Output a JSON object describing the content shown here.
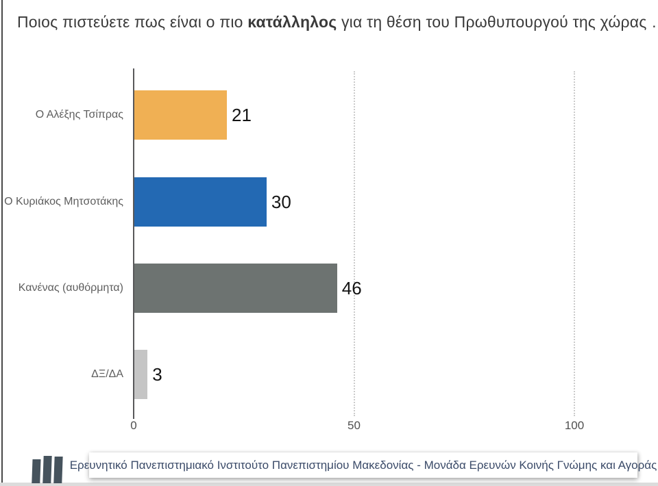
{
  "title": {
    "prefix": "Ποιος πιστεύετε πως είναι ο πιο ",
    "bold": "κατάλληλος",
    "suffix": " για τη θέση του Πρωθυπουργού της χώρας …"
  },
  "chart_data": {
    "type": "bar",
    "orientation": "horizontal",
    "categories": [
      "Ο Αλέξης Τσίπρας",
      "Ο Κυριάκος Μητσοτάκης",
      "Κανένας (αυθόρμητα)",
      "ΔΞ/ΔΑ"
    ],
    "values": [
      21,
      30,
      46,
      3
    ],
    "bar_colors": [
      "#F0B054",
      "#2369B3",
      "#6D7371",
      "#C5C5C5"
    ],
    "value_labels": [
      21,
      30,
      46,
      3
    ],
    "xlim": [
      0,
      100
    ],
    "x_ticks": [
      0,
      50,
      100
    ],
    "grid": "vertical dotted gridlines at 50 and 100",
    "legend": "none",
    "axis_color": "#58585a",
    "gridline_color": "#cbcbcb"
  },
  "footer": {
    "text": "Ερευνητικό Πανεπιστημιακό Ινστιτούτο Πανεπιστημίου Μακεδονίας - Μονάδα Ερευνών Κοινής Γνώμης και Αγοράς",
    "logo": "three-vertical-bars-logo",
    "logo_color": "#46535d",
    "text_color": "#3a4a68"
  }
}
